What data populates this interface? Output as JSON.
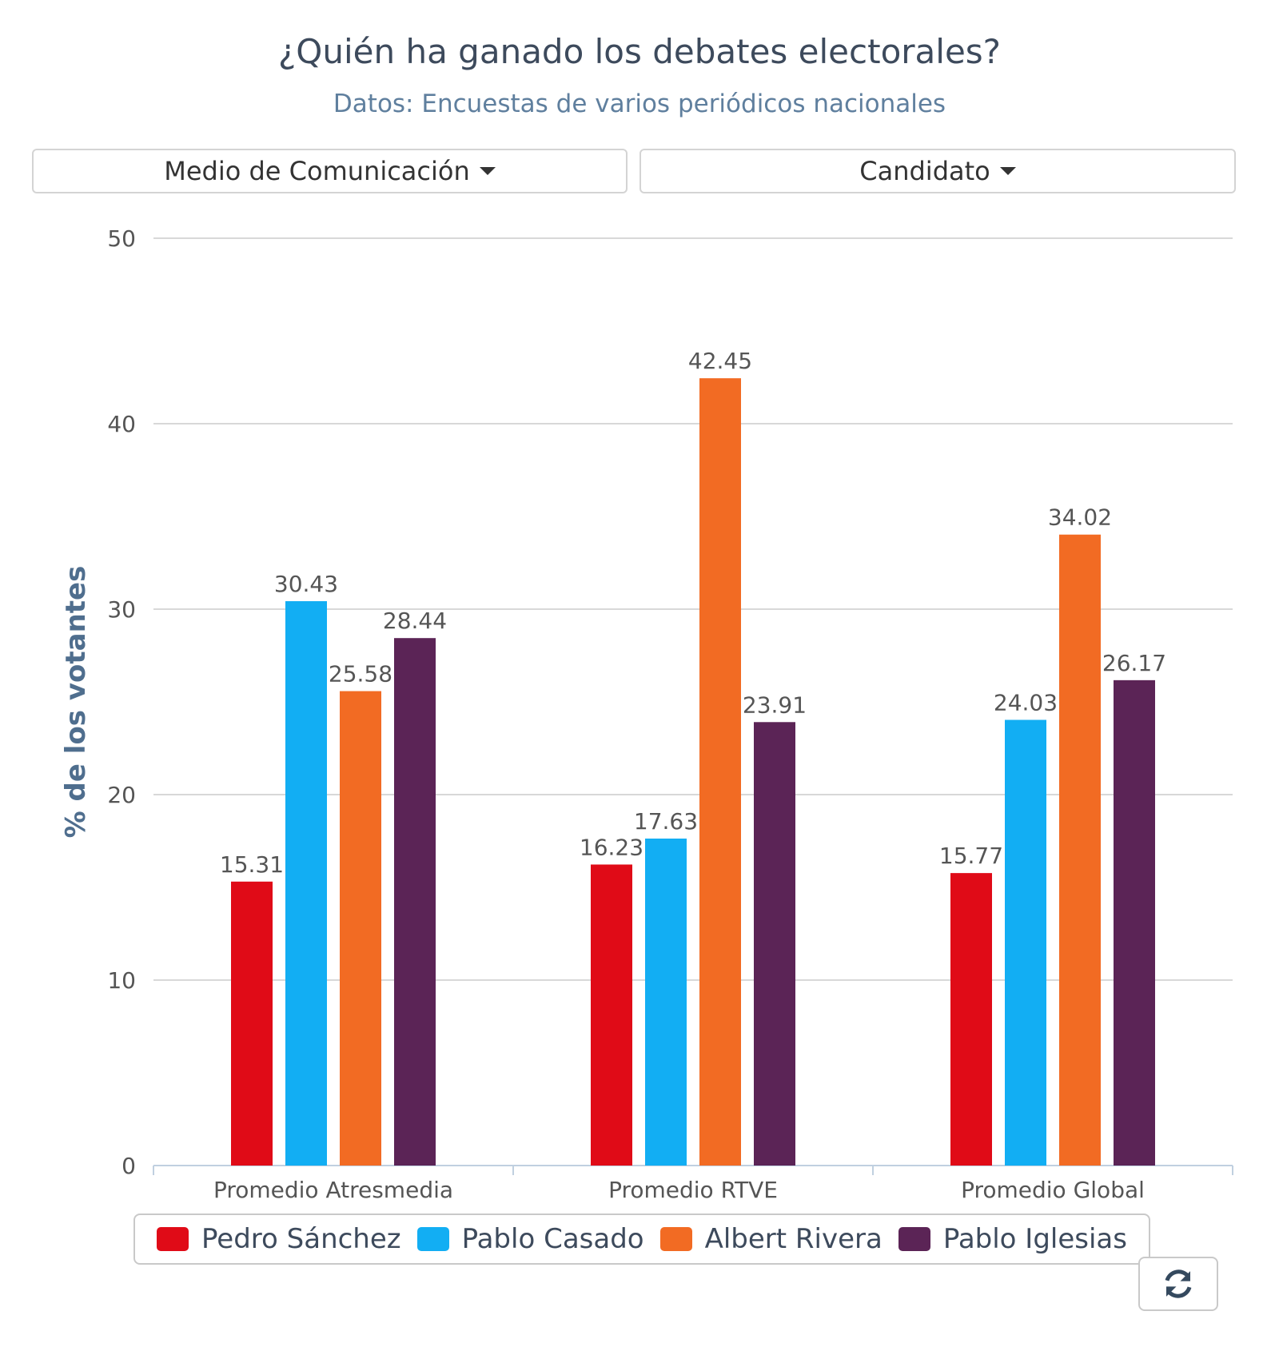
{
  "header": {
    "title": "¿Quién ha ganado los debates electorales?",
    "subtitle": "Datos: Encuestas de varios periódicos nacionales"
  },
  "controls": {
    "media_dropdown": "Medio de Comunicación",
    "candidate_dropdown": "Candidato",
    "refresh_icon": "refresh-icon"
  },
  "colors": {
    "Pedro Sánchez": "#e00b17",
    "Pablo Casado": "#12aef3",
    "Albert Rivera": "#f26b23",
    "Pablo Iglesias": "#5b2456"
  },
  "chart_data": {
    "type": "bar",
    "title": "¿Quién ha ganado los debates electorales?",
    "subtitle": "Datos: Encuestas de varios periódicos nacionales",
    "xlabel": "",
    "ylabel": "% de los votantes",
    "ylim": [
      0,
      50
    ],
    "yticks": [
      0,
      10,
      20,
      30,
      40,
      50
    ],
    "grid": true,
    "legend": "bottom",
    "categories": [
      "Promedio Atresmedia",
      "Promedio RTVE",
      "Promedio Global"
    ],
    "series": [
      {
        "name": "Pedro Sánchez",
        "values": [
          15.31,
          16.23,
          15.77
        ]
      },
      {
        "name": "Pablo Casado",
        "values": [
          30.43,
          17.63,
          24.03
        ]
      },
      {
        "name": "Albert Rivera",
        "values": [
          25.58,
          42.45,
          34.02
        ]
      },
      {
        "name": "Pablo Iglesias",
        "values": [
          28.44,
          23.91,
          26.17
        ]
      }
    ]
  }
}
